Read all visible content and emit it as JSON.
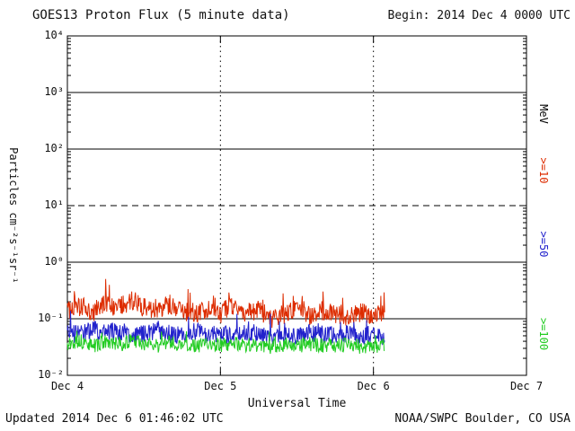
{
  "chart_data": {
    "type": "line",
    "title": "GOES13 Proton Flux (5 minute data)",
    "begin_label": "Begin: 2014 Dec 4 0000 UTC",
    "xlabel": "Universal Time",
    "ylabel": "Particles cm⁻²s⁻¹sr⁻¹",
    "updated": "Updated 2014 Dec  6 01:46:02 UTC",
    "credit": "NOAA/SWPC Boulder, CO USA",
    "x_axis": {
      "span_days": 3,
      "ticks": [
        {
          "label": "Dec 4",
          "day": 0
        },
        {
          "label": "Dec 5",
          "day": 1
        },
        {
          "label": "Dec 6",
          "day": 2
        },
        {
          "label": "Dec 7",
          "day": 3
        }
      ],
      "dotted_grid_days": [
        1,
        2
      ]
    },
    "y_axis": {
      "scale": "log",
      "min_exp": -2,
      "max_exp": 4,
      "ticks": [
        {
          "label": "10⁴",
          "exp": 4
        },
        {
          "label": "10³",
          "exp": 3
        },
        {
          "label": "10²",
          "exp": 2
        },
        {
          "label": "10¹",
          "exp": 1
        },
        {
          "label": "10⁰",
          "exp": 0
        },
        {
          "label": "10⁻¹",
          "exp": -1
        },
        {
          "label": "10⁻²",
          "exp": -2
        }
      ],
      "solid_grid_exps": [
        3,
        2,
        0,
        -1
      ],
      "dashed_grid_exps": [
        1
      ]
    },
    "right_axis_labels": [
      {
        "text": "MeV",
        "color": "#000000"
      },
      {
        "text": ">=10",
        "color": "#dd2c00"
      },
      {
        "text": ">=50",
        "color": "#2222cc"
      },
      {
        "text": ">=100",
        "color": "#22cc22"
      }
    ],
    "series": [
      {
        "name": ">=10 MeV",
        "color": "#dd2c00",
        "end_day": 2.073,
        "step_hours": 2,
        "baseline": [
          0.14,
          0.17,
          0.13,
          0.19,
          0.15,
          0.22,
          0.16,
          0.12,
          0.18,
          0.14,
          0.11,
          0.15,
          0.12,
          0.17,
          0.12,
          0.14,
          0.1,
          0.12,
          0.15,
          0.11,
          0.13,
          0.12,
          0.11,
          0.13,
          0.11,
          0.12
        ],
        "noise_log10": 0.18,
        "spike_prob": 0.05,
        "spike_log10": 0.4,
        "seed": 41
      },
      {
        "name": ">=50 MeV",
        "color": "#2222cc",
        "end_day": 2.073,
        "step_hours": 2,
        "baseline": [
          0.06,
          0.052,
          0.065,
          0.055,
          0.06,
          0.05,
          0.056,
          0.062,
          0.05,
          0.055,
          0.06,
          0.05,
          0.055,
          0.048,
          0.058,
          0.055,
          0.05,
          0.054,
          0.048,
          0.058,
          0.053,
          0.05,
          0.055,
          0.048,
          0.053,
          0.05
        ],
        "noise_log10": 0.16,
        "spike_prob": 0.04,
        "spike_log10": 0.25,
        "seed": 97
      },
      {
        "name": ">=100 MeV",
        "color": "#22cc22",
        "end_day": 2.073,
        "step_hours": 2,
        "baseline": [
          0.036,
          0.04,
          0.033,
          0.038,
          0.035,
          0.04,
          0.036,
          0.033,
          0.038,
          0.035,
          0.033,
          0.036,
          0.034,
          0.037,
          0.033,
          0.035,
          0.032,
          0.035,
          0.033,
          0.036,
          0.034,
          0.033,
          0.035,
          0.032,
          0.034,
          0.033
        ],
        "noise_log10": 0.13,
        "spike_prob": 0.03,
        "spike_log10": 0.2,
        "seed": 13
      }
    ]
  }
}
